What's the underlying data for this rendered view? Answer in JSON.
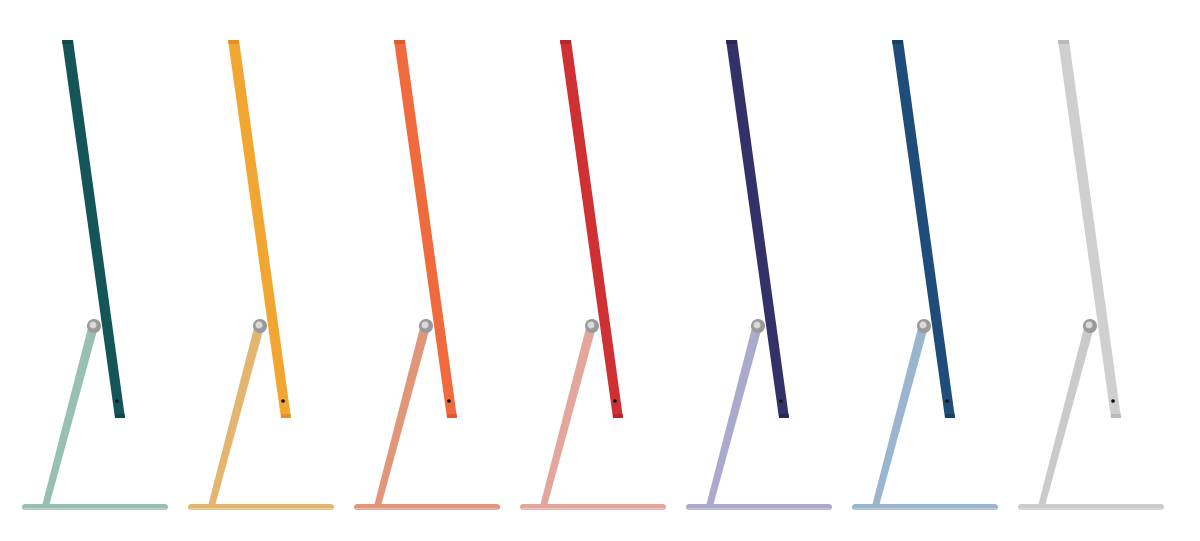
{
  "imacs": [
    {
      "name": "green",
      "display": "#14555a",
      "stand": "#97bfb2",
      "dark": "#0b3e43"
    },
    {
      "name": "yellow",
      "display": "#f2a632",
      "stand": "#e3b56f",
      "dark": "#d9861c"
    },
    {
      "name": "orange",
      "display": "#ef6a3c",
      "stand": "#e1967a",
      "dark": "#d24e24"
    },
    {
      "name": "red",
      "display": "#cf3034",
      "stand": "#e3a69b",
      "dark": "#a81e23"
    },
    {
      "name": "purple",
      "display": "#333168",
      "stand": "#abaacd",
      "dark": "#22204f"
    },
    {
      "name": "blue",
      "display": "#1f4c78",
      "stand": "#99b6ce",
      "dark": "#143759"
    },
    {
      "name": "silver",
      "display": "#cfcfcf",
      "stand": "#cacaca",
      "dark": "#aaaaaa"
    }
  ]
}
